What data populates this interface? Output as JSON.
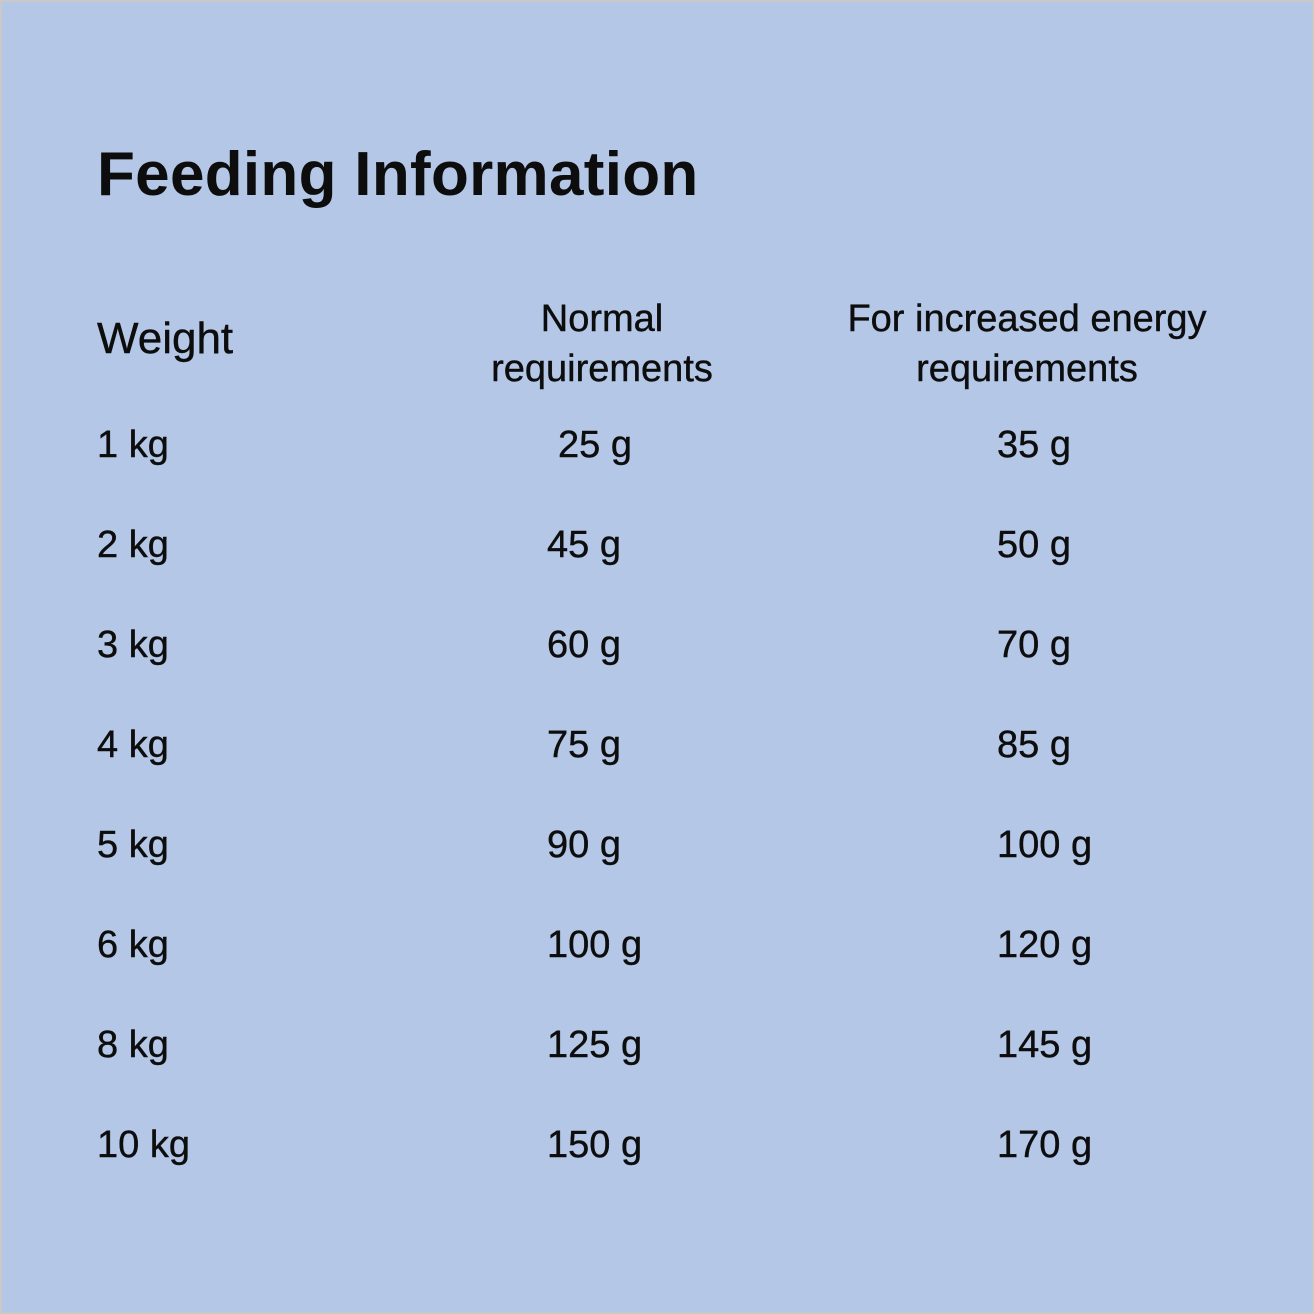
{
  "title": "Feeding Information",
  "table": {
    "headers": {
      "weight": "Weight",
      "normal_line1": "Normal",
      "normal_line2": "requirements",
      "increased_line1": "For increased energy",
      "increased_line2": "requirements"
    },
    "rows": [
      {
        "weight": "1 kg",
        "normal": "25 g",
        "increased": "35 g"
      },
      {
        "weight": "2 kg",
        "normal": "45 g",
        "increased": "50 g"
      },
      {
        "weight": "3 kg",
        "normal": "60 g",
        "increased": "70 g"
      },
      {
        "weight": "4 kg",
        "normal": "75 g",
        "increased": "85 g"
      },
      {
        "weight": "5 kg",
        "normal": "90 g",
        "increased": "100 g"
      },
      {
        "weight": "6 kg",
        "normal": "100 g",
        "increased": "120 g"
      },
      {
        "weight": "8 kg",
        "normal": "125 g",
        "increased": "145 g"
      },
      {
        "weight": "10 kg",
        "normal": "150 g",
        "increased": "170 g"
      }
    ]
  },
  "colors": {
    "background": "#b4c7e7",
    "text": "#0d0d0d",
    "border": "#c9c9c9"
  }
}
